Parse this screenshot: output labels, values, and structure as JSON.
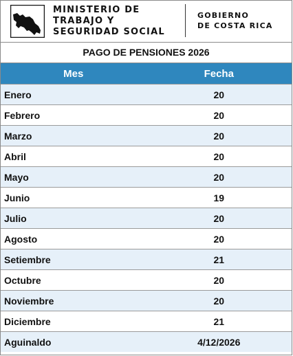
{
  "header": {
    "ministry_lines": [
      "MINISTERIO DE",
      "TRABAJO Y",
      "SEGURIDAD SOCIAL"
    ],
    "government_lines": [
      "GOBIERNO",
      "DE COSTA RICA"
    ]
  },
  "title": "PAGO DE PENSIONES 2026",
  "table": {
    "columns": [
      "Mes",
      "Fecha"
    ],
    "rows": [
      {
        "mes": "Enero",
        "fecha": "20"
      },
      {
        "mes": "Febrero",
        "fecha": "20"
      },
      {
        "mes": "Marzo",
        "fecha": "20"
      },
      {
        "mes": "Abril",
        "fecha": "20"
      },
      {
        "mes": "Mayo",
        "fecha": "20"
      },
      {
        "mes": "Junio",
        "fecha": "19"
      },
      {
        "mes": "Julio",
        "fecha": "20"
      },
      {
        "mes": "Agosto",
        "fecha": "20"
      },
      {
        "mes": "Setiembre",
        "fecha": "21"
      },
      {
        "mes": "Octubre",
        "fecha": "20"
      },
      {
        "mes": "Noviembre",
        "fecha": "20"
      },
      {
        "mes": "Diciembre",
        "fecha": "21"
      },
      {
        "mes": "Aguinaldo",
        "fecha": "4/12/2026"
      }
    ]
  },
  "colors": {
    "header_row": "#2f87be",
    "odd_row": "#e6f0f9",
    "even_row": "#ffffff"
  }
}
